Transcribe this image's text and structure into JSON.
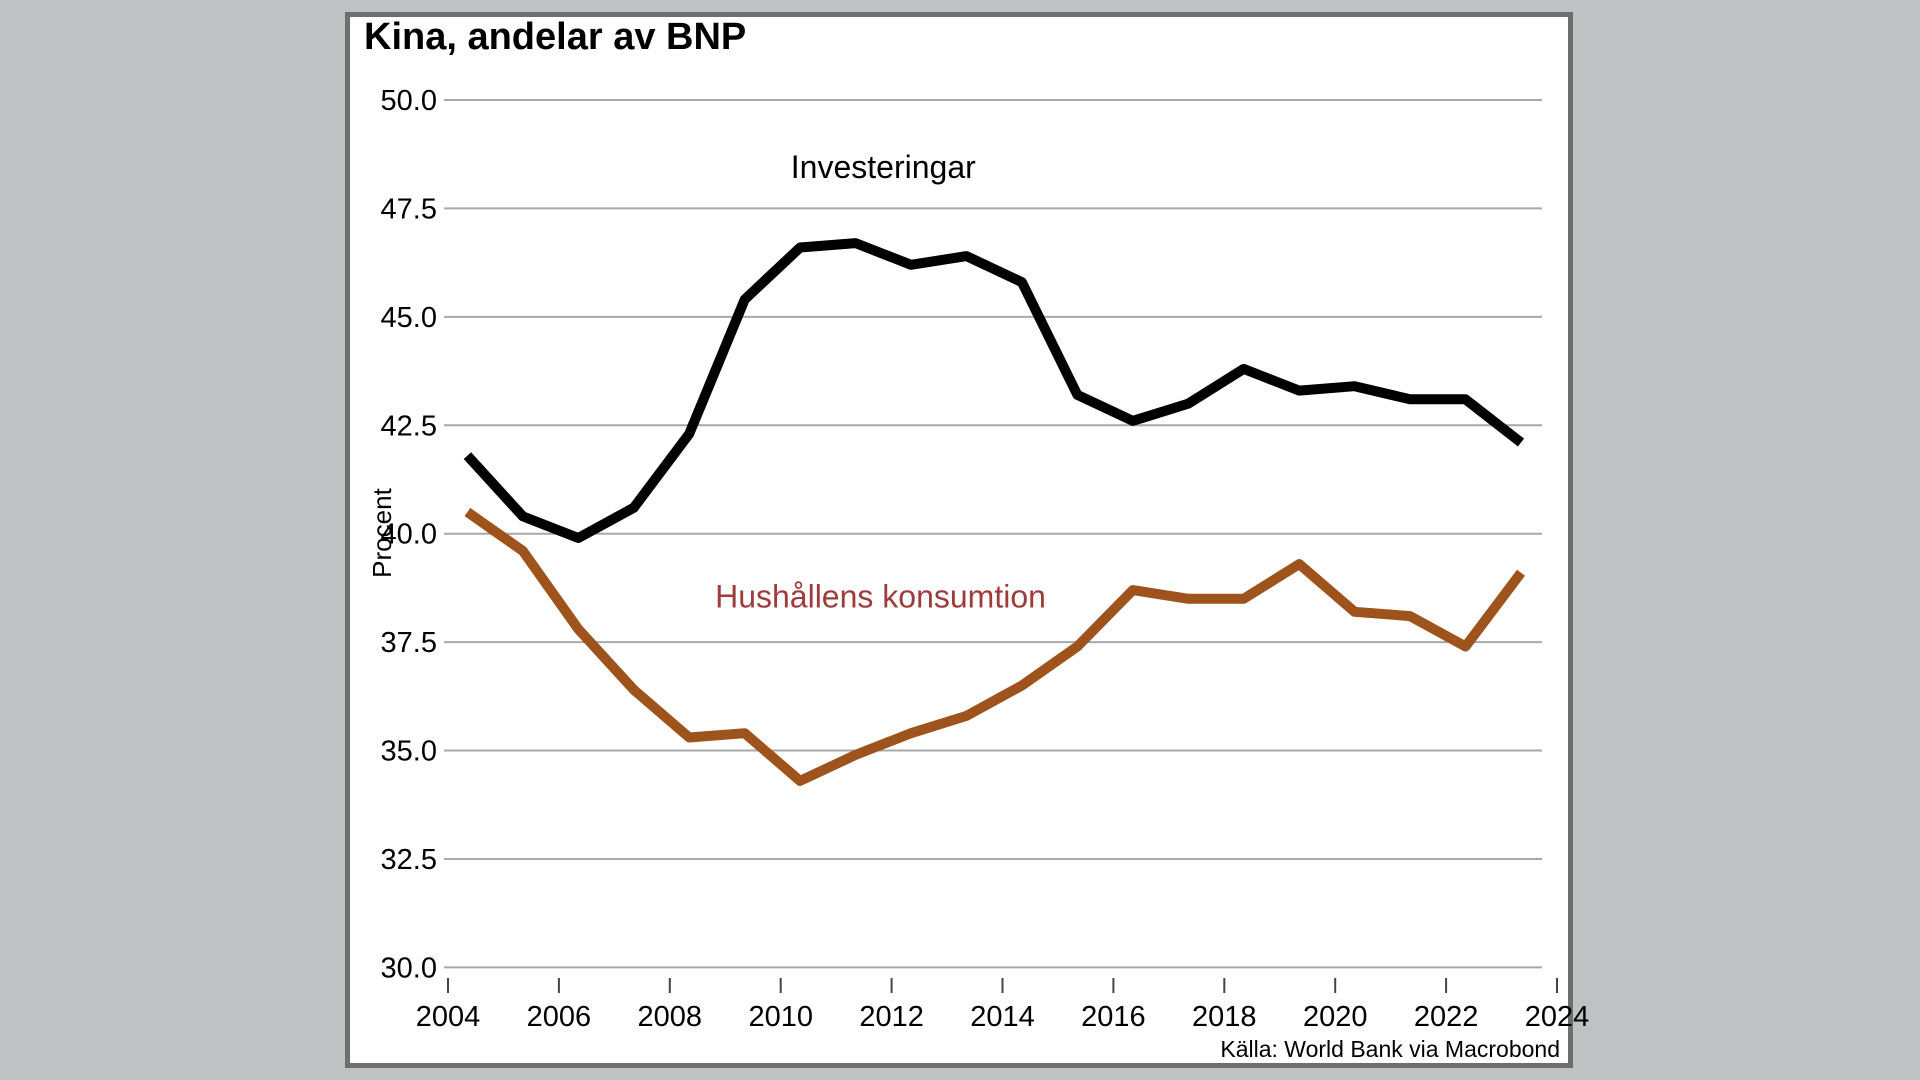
{
  "title": "Kina, andelar av BNP",
  "source": "Källa: World Bank via Macrobond",
  "colors": {
    "background": "#bec2c2",
    "frame": "#6e6e6e",
    "grid": "#a8a8a8",
    "tick": "#444444",
    "investeringar_line": "#000000",
    "konsumtion_line": "#9d531b",
    "konsumtion_label": "#9e3b3b"
  },
  "chart_data": {
    "type": "line",
    "title": "Kina, andelar av BNP",
    "xlabel": "",
    "ylabel": "Procent",
    "ylim": [
      30.0,
      50.0
    ],
    "xlim": [
      2004,
      2024
    ],
    "grid": "horizontal",
    "yticks": [
      "50.0",
      "47.5",
      "45.0",
      "42.5",
      "40.0",
      "37.5",
      "35.0",
      "32.5",
      "30.0"
    ],
    "xticks": [
      "2004",
      "2006",
      "2008",
      "2010",
      "2012",
      "2014",
      "2016",
      "2018",
      "2020",
      "2022",
      "2024"
    ],
    "x": [
      2004,
      2005,
      2006,
      2007,
      2008,
      2009,
      2010,
      2011,
      2012,
      2013,
      2014,
      2015,
      2016,
      2017,
      2018,
      2019,
      2020,
      2021,
      2022,
      2023
    ],
    "series": [
      {
        "name": "Investeringar",
        "color": "#000000",
        "label_color": "#000000",
        "values": [
          41.8,
          40.4,
          39.9,
          40.6,
          42.3,
          45.4,
          46.6,
          46.7,
          46.2,
          46.4,
          45.8,
          43.2,
          42.6,
          43.0,
          43.8,
          43.3,
          43.4,
          43.1,
          43.1,
          42.1
        ]
      },
      {
        "name": "Hushållens konsumtion",
        "color": "#9d531b",
        "label_color": "#9e3b3b",
        "values": [
          40.5,
          39.6,
          37.8,
          36.4,
          35.3,
          35.4,
          34.3,
          34.9,
          35.4,
          35.8,
          36.5,
          37.4,
          38.7,
          38.5,
          38.5,
          39.3,
          38.2,
          38.1,
          37.4,
          39.1
        ]
      }
    ],
    "annotations": [
      {
        "text": "Investeringar",
        "x": 2011.85,
        "y": 48.2,
        "color": "#000000"
      },
      {
        "text": "Hushållens konsumtion",
        "x": 2011.8,
        "y": 38.3,
        "color": "#9e3b3b"
      }
    ],
    "legend_position": "inline-labels"
  }
}
